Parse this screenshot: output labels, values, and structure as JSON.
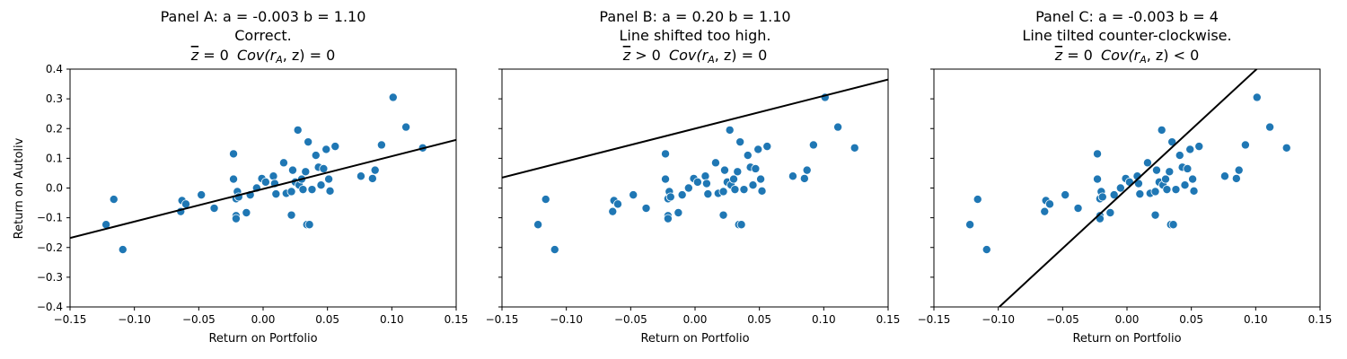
{
  "chart_data": [
    {
      "type": "scatter",
      "title": "Panel A: a = -0.003  b = 1.10",
      "subtitle": "Correct.",
      "stat_line": {
        "zbar": "z",
        "zop": "= 0",
        "cov": "Cov(r",
        "sub": "A",
        "tail": ", z) = 0"
      },
      "xlabel": "Return on Portfolio",
      "ylabel": "Return on Autoliv",
      "line": {
        "a": -0.003,
        "b": 1.1
      }
    },
    {
      "type": "scatter",
      "title": "Panel B: a = 0.20  b = 1.10",
      "subtitle": "Line shifted too high.",
      "stat_line": {
        "zbar": "z",
        "zop": "> 0",
        "cov": "Cov(r",
        "sub": "A",
        "tail": ", z) = 0"
      },
      "xlabel": "Return on Portfolio",
      "ylabel": "",
      "line": {
        "a": 0.2,
        "b": 1.1
      }
    },
    {
      "type": "scatter",
      "title": "Panel C: a = -0.003  b = 4",
      "subtitle": "Line tilted counter-clockwise.",
      "stat_line": {
        "zbar": "z",
        "zop": "= 0",
        "cov": "Cov(r",
        "sub": "A",
        "tail": ", z) < 0"
      },
      "xlabel": "Return on Portfolio",
      "ylabel": "",
      "line": {
        "a": -0.003,
        "b": 4
      }
    }
  ],
  "shared": {
    "xlim": [
      -0.15,
      0.15
    ],
    "ylim": [
      -0.4,
      0.4
    ],
    "xticks": [
      -0.15,
      -0.1,
      -0.05,
      0.0,
      0.05,
      0.1,
      0.15
    ],
    "xtick_labels": [
      "−0.15",
      "−0.10",
      "−0.05",
      "0.00",
      "0.05",
      "0.10",
      "0.15"
    ],
    "yticks": [
      -0.4,
      -0.3,
      -0.2,
      -0.1,
      0.0,
      0.1,
      0.2,
      0.3,
      0.4
    ],
    "ytick_labels": [
      "−0.4",
      "−0.3",
      "−0.2",
      "−0.1",
      "0.0",
      "0.1",
      "0.2",
      "0.3",
      "0.4"
    ],
    "grid": false,
    "point_color": "#1f77b4",
    "line_color": "#000000",
    "points": [
      [
        -0.122,
        -0.123
      ],
      [
        -0.116,
        -0.038
      ],
      [
        -0.109,
        -0.207
      ],
      [
        -0.064,
        -0.079
      ],
      [
        -0.063,
        -0.042
      ],
      [
        -0.06,
        -0.054
      ],
      [
        -0.048,
        -0.023
      ],
      [
        -0.038,
        -0.068
      ],
      [
        -0.023,
        0.03
      ],
      [
        -0.023,
        0.115
      ],
      [
        -0.021,
        -0.036
      ],
      [
        -0.021,
        -0.093
      ],
      [
        -0.021,
        -0.103
      ],
      [
        -0.02,
        -0.012
      ],
      [
        -0.019,
        -0.03
      ],
      [
        -0.013,
        -0.083
      ],
      [
        -0.01,
        -0.023
      ],
      [
        -0.005,
        0.0
      ],
      [
        -0.001,
        0.032
      ],
      [
        0.002,
        0.02
      ],
      [
        0.008,
        0.04
      ],
      [
        0.009,
        0.015
      ],
      [
        0.01,
        -0.02
      ],
      [
        0.016,
        0.085
      ],
      [
        0.018,
        -0.018
      ],
      [
        0.022,
        -0.091
      ],
      [
        0.022,
        -0.012
      ],
      [
        0.023,
        0.06
      ],
      [
        0.025,
        0.02
      ],
      [
        0.027,
        0.195
      ],
      [
        0.028,
        0.01
      ],
      [
        0.03,
        0.03
      ],
      [
        0.031,
        -0.005
      ],
      [
        0.033,
        0.055
      ],
      [
        0.034,
        -0.123
      ],
      [
        0.035,
        0.155
      ],
      [
        0.036,
        -0.123
      ],
      [
        0.038,
        -0.005
      ],
      [
        0.041,
        0.11
      ],
      [
        0.043,
        0.07
      ],
      [
        0.045,
        0.01
      ],
      [
        0.047,
        0.065
      ],
      [
        0.049,
        0.13
      ],
      [
        0.051,
        0.03
      ],
      [
        0.052,
        -0.01
      ],
      [
        0.056,
        0.14
      ],
      [
        0.076,
        0.04
      ],
      [
        0.085,
        0.032
      ],
      [
        0.087,
        0.06
      ],
      [
        0.092,
        0.145
      ],
      [
        0.101,
        0.305
      ],
      [
        0.111,
        0.205
      ],
      [
        0.124,
        0.135
      ]
    ]
  }
}
